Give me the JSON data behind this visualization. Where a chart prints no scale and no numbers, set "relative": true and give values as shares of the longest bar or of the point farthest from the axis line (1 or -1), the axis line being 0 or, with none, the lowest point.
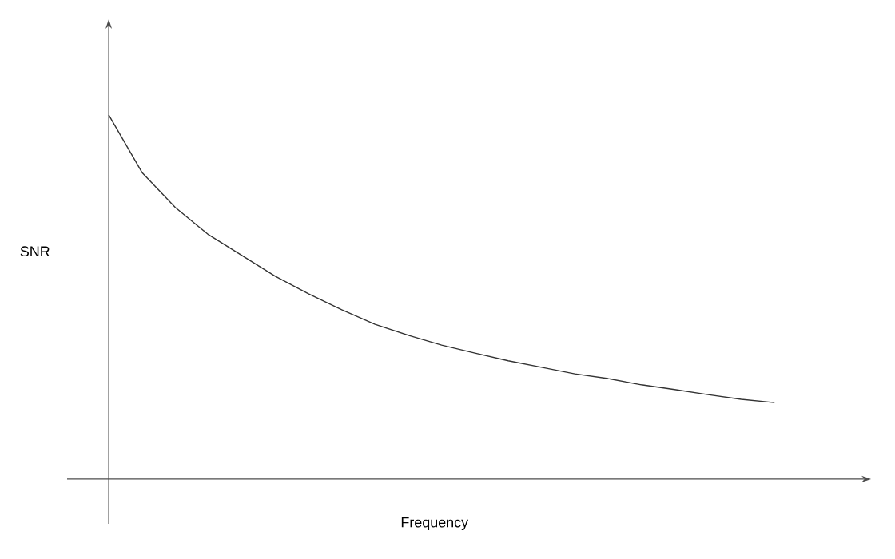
{
  "chart_data": {
    "type": "line",
    "relative": true,
    "xlabel": "Frequency",
    "ylabel": "SNR",
    "categories": [
      null,
      null,
      null,
      null,
      null,
      null,
      null,
      null,
      null,
      null,
      null,
      null,
      null,
      null,
      null,
      null,
      null,
      null,
      null,
      null,
      null
    ],
    "series": [
      {
        "color": "#333333",
        "values": [
          1.0,
          0.842,
          0.746,
          0.671,
          0.614,
          0.557,
          0.509,
          0.465,
          0.425,
          0.395,
          0.368,
          0.346,
          0.325,
          0.307,
          0.289,
          0.276,
          0.259,
          0.246,
          0.232,
          0.219,
          0.21
        ]
      }
    ],
    "marker": "none",
    "line_style": "solid"
  }
}
